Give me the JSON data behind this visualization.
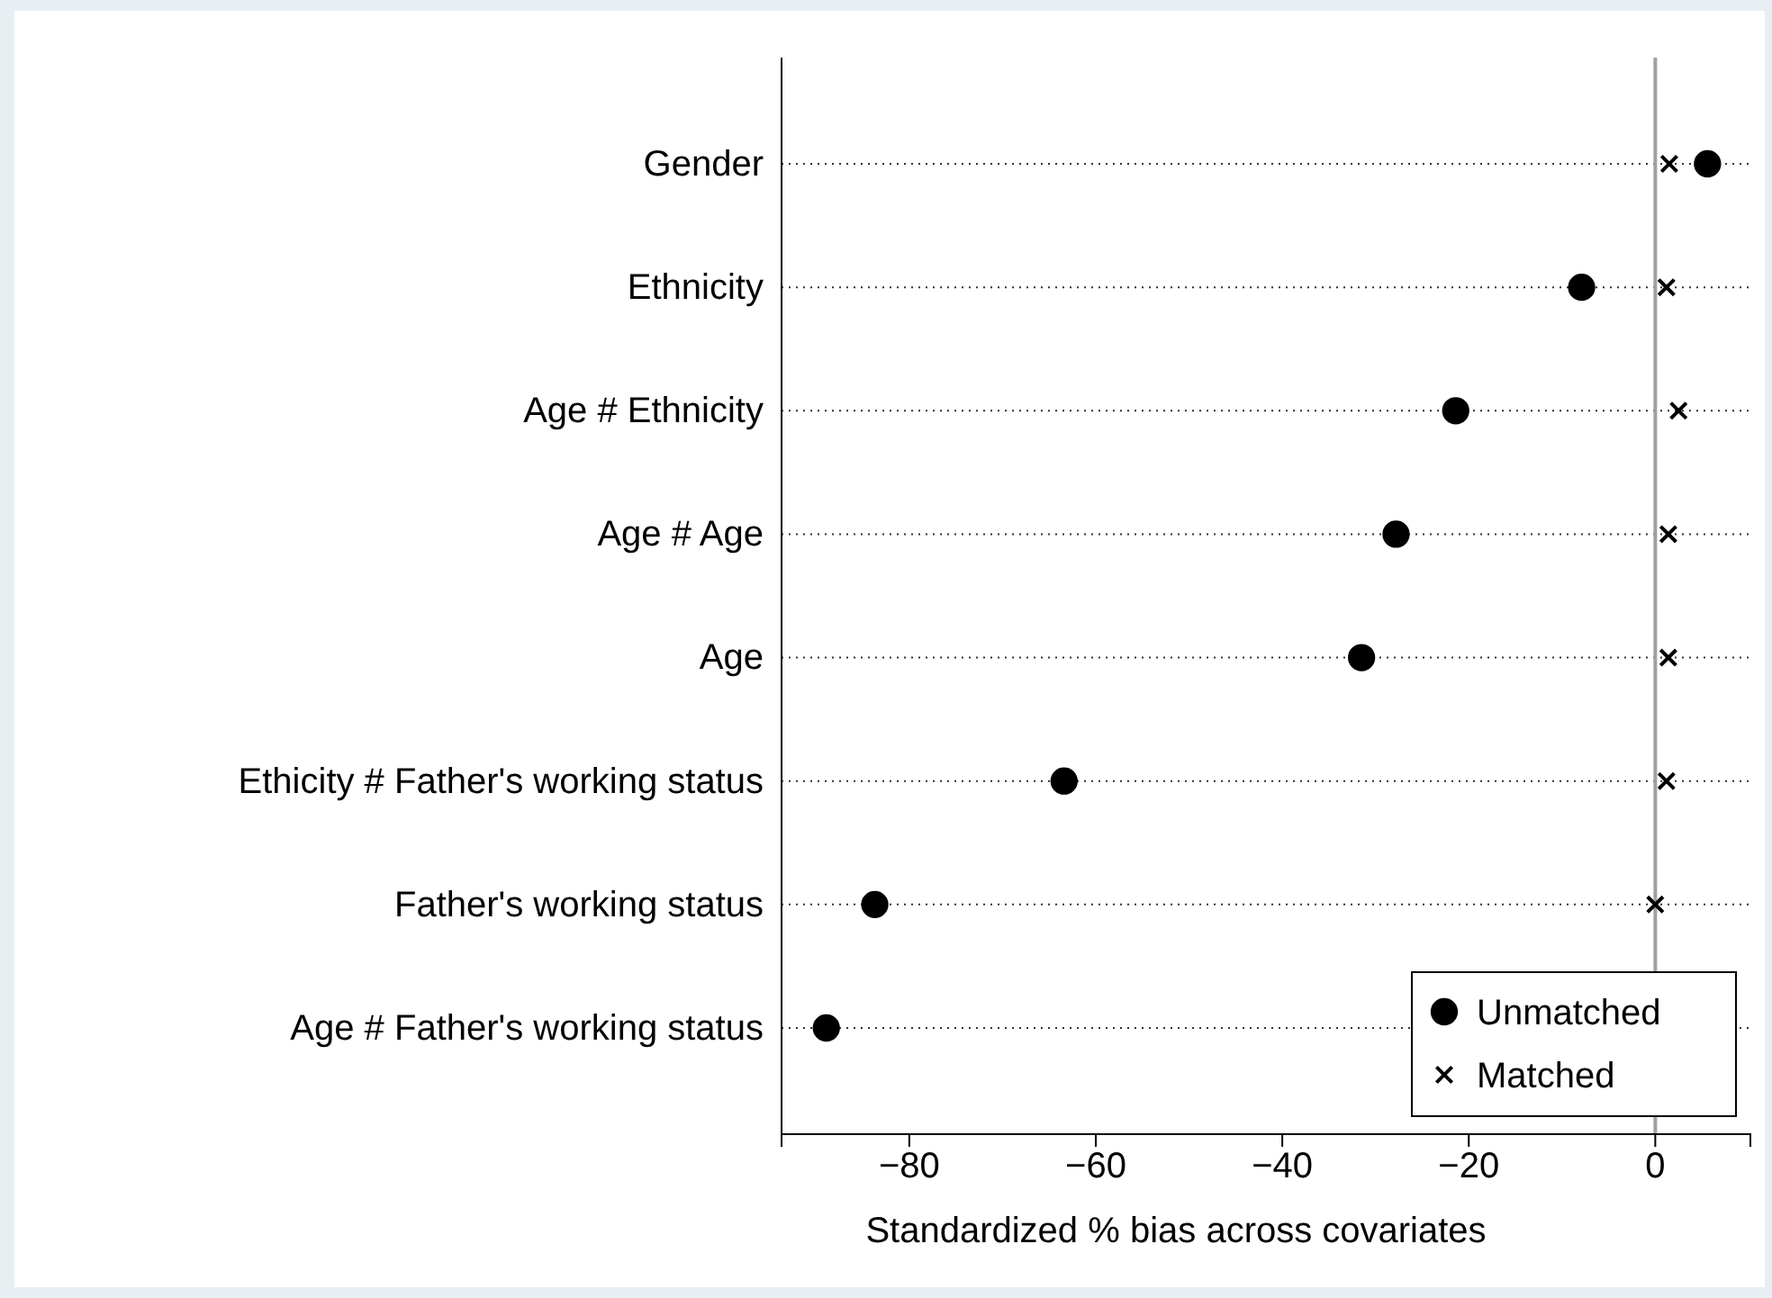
{
  "chart_data": {
    "type": "scatter",
    "orientation": "horizontal",
    "xlabel": "Standardized % bias across covariates",
    "categories": [
      "Gender",
      "Ethnicity",
      "Age # Ethnicity",
      "Age # Age",
      "Age",
      "Ethicity # Father's working status",
      "Father's working status",
      "Age # Father's working status"
    ],
    "series": [
      {
        "name": "Unmatched",
        "color": "#000000",
        "marker": "circle",
        "values": [
          5.6,
          -7.9,
          -21.4,
          -27.8,
          -31.5,
          -63.4,
          -83.7,
          -88.9
        ]
      },
      {
        "name": "Matched",
        "color": "#000000",
        "marker": "cross",
        "values": [
          1.5,
          1.2,
          2.5,
          1.4,
          1.4,
          1.2,
          0.0,
          null
        ]
      }
    ],
    "xlim": [
      -93.7,
      10.2
    ],
    "xticks": [
      -80,
      -60,
      -40,
      -20,
      0
    ],
    "ref_lines": [
      {
        "axis": "x",
        "value": 0,
        "color": "#a0a0a0"
      }
    ],
    "grid": "y",
    "legend": "bottom right"
  }
}
